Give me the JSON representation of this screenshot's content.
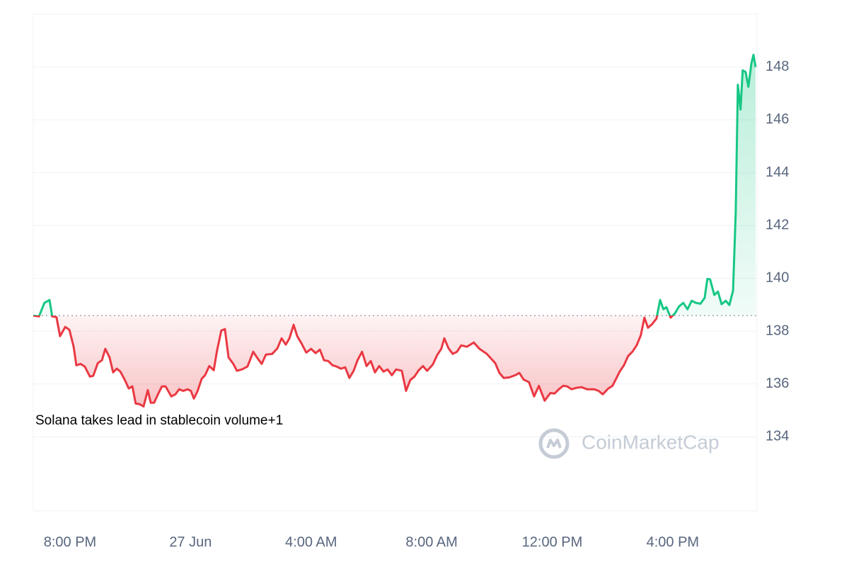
{
  "chart_data": {
    "type": "line",
    "annotation": "Solana takes lead in stablecoin volume+1",
    "watermark": "CoinMarketCap",
    "reference_line": 138.59,
    "up_color": "#16c784",
    "down_color": "#ea3943",
    "grid": true,
    "xlim": [
      -1.22,
      22.75
    ],
    "xticks": [
      {
        "value": 0,
        "label": "8:00 PM"
      },
      {
        "value": 4,
        "label": "27 Jun"
      },
      {
        "value": 8,
        "label": "4:00 AM"
      },
      {
        "value": 12,
        "label": "8:00 AM"
      },
      {
        "value": 16,
        "label": "12:00 PM"
      },
      {
        "value": 20,
        "label": "4:00 PM"
      }
    ],
    "ylim": [
      131.2,
      150
    ],
    "yticks": [
      134,
      136,
      138,
      140,
      142,
      144,
      146,
      148
    ],
    "x": [
      -1.22,
      -1.03,
      -0.85,
      -0.68,
      -0.59,
      -0.45,
      -0.33,
      -0.16,
      -0.02,
      0.12,
      0.21,
      0.35,
      0.49,
      0.66,
      0.77,
      0.92,
      1.06,
      1.17,
      1.31,
      1.43,
      1.55,
      1.67,
      1.81,
      1.95,
      2.07,
      2.18,
      2.3,
      2.44,
      2.58,
      2.68,
      2.79,
      2.93,
      3.05,
      3.17,
      3.36,
      3.5,
      3.62,
      3.76,
      3.9,
      4.01,
      4.11,
      4.23,
      4.37,
      4.48,
      4.62,
      4.77,
      4.88,
      5.02,
      5.14,
      5.26,
      5.42,
      5.54,
      5.7,
      5.89,
      6.08,
      6.22,
      6.36,
      6.5,
      6.71,
      6.88,
      7.02,
      7.16,
      7.28,
      7.42,
      7.54,
      7.68,
      7.84,
      8.0,
      8.15,
      8.29,
      8.43,
      8.57,
      8.71,
      8.85,
      8.99,
      9.13,
      9.27,
      9.41,
      9.55,
      9.69,
      9.84,
      9.98,
      10.12,
      10.26,
      10.4,
      10.54,
      10.68,
      10.82,
      11.01,
      11.15,
      11.29,
      11.43,
      11.57,
      11.71,
      11.85,
      12.04,
      12.18,
      12.32,
      12.42,
      12.56,
      12.7,
      12.84,
      12.98,
      13.17,
      13.4,
      13.59,
      13.83,
      14.11,
      14.25,
      14.39,
      14.58,
      14.77,
      14.91,
      15.05,
      15.23,
      15.4,
      15.56,
      15.75,
      15.94,
      16.08,
      16.22,
      16.36,
      16.5,
      16.64,
      16.78,
      16.97,
      17.16,
      17.39,
      17.54,
      17.68,
      17.86,
      18.0,
      18.1,
      18.24,
      18.38,
      18.52,
      18.66,
      18.8,
      18.94,
      19.06,
      19.18,
      19.32,
      19.46,
      19.58,
      19.69,
      19.79,
      19.93,
      20.07,
      20.21,
      20.35,
      20.49,
      20.63,
      20.77,
      20.92,
      21.06,
      21.15,
      21.24,
      21.38,
      21.5,
      21.62,
      21.76,
      21.88,
      22.0,
      22.09,
      22.16,
      22.25,
      22.32,
      22.42,
      22.51,
      22.61,
      22.68,
      22.75
    ],
    "values": [
      138.59,
      138.56,
      139.07,
      139.18,
      138.56,
      138.53,
      137.81,
      138.16,
      138.05,
      137.41,
      136.71,
      136.76,
      136.66,
      136.28,
      136.31,
      136.79,
      136.9,
      137.33,
      137.01,
      136.44,
      136.58,
      136.47,
      136.17,
      135.83,
      135.91,
      135.26,
      135.24,
      135.15,
      135.77,
      135.29,
      135.29,
      135.64,
      135.91,
      135.91,
      135.53,
      135.61,
      135.8,
      135.74,
      135.8,
      135.74,
      135.45,
      135.72,
      136.2,
      136.33,
      136.68,
      136.52,
      137.27,
      138.02,
      138.08,
      137.01,
      136.76,
      136.5,
      136.55,
      136.66,
      137.22,
      136.98,
      136.76,
      137.11,
      137.14,
      137.35,
      137.73,
      137.49,
      137.73,
      138.24,
      137.81,
      137.54,
      137.19,
      137.33,
      137.17,
      137.3,
      136.9,
      136.87,
      136.71,
      136.66,
      136.58,
      136.63,
      136.23,
      136.5,
      136.92,
      137.22,
      136.68,
      136.87,
      136.44,
      136.68,
      136.47,
      136.55,
      136.33,
      136.55,
      136.5,
      135.74,
      136.15,
      136.28,
      136.52,
      136.68,
      136.5,
      136.74,
      137.09,
      137.33,
      137.73,
      137.35,
      137.14,
      137.22,
      137.46,
      137.41,
      137.57,
      137.33,
      137.14,
      136.79,
      136.42,
      136.23,
      136.25,
      136.33,
      136.42,
      136.17,
      136.07,
      135.53,
      135.93,
      135.37,
      135.66,
      135.64,
      135.8,
      135.93,
      135.91,
      135.8,
      135.85,
      135.88,
      135.8,
      135.8,
      135.74,
      135.61,
      135.83,
      135.93,
      136.15,
      136.47,
      136.71,
      137.06,
      137.22,
      137.46,
      137.84,
      138.51,
      138.13,
      138.27,
      138.48,
      139.18,
      138.83,
      138.91,
      138.51,
      138.67,
      138.94,
      139.07,
      138.83,
      139.15,
      139.07,
      139.04,
      139.26,
      139.98,
      139.96,
      139.37,
      139.5,
      139.02,
      139.15,
      138.99,
      139.53,
      142.5,
      147.33,
      146.39,
      147.87,
      147.81,
      147.25,
      148.13,
      148.46,
      148.0
    ]
  }
}
